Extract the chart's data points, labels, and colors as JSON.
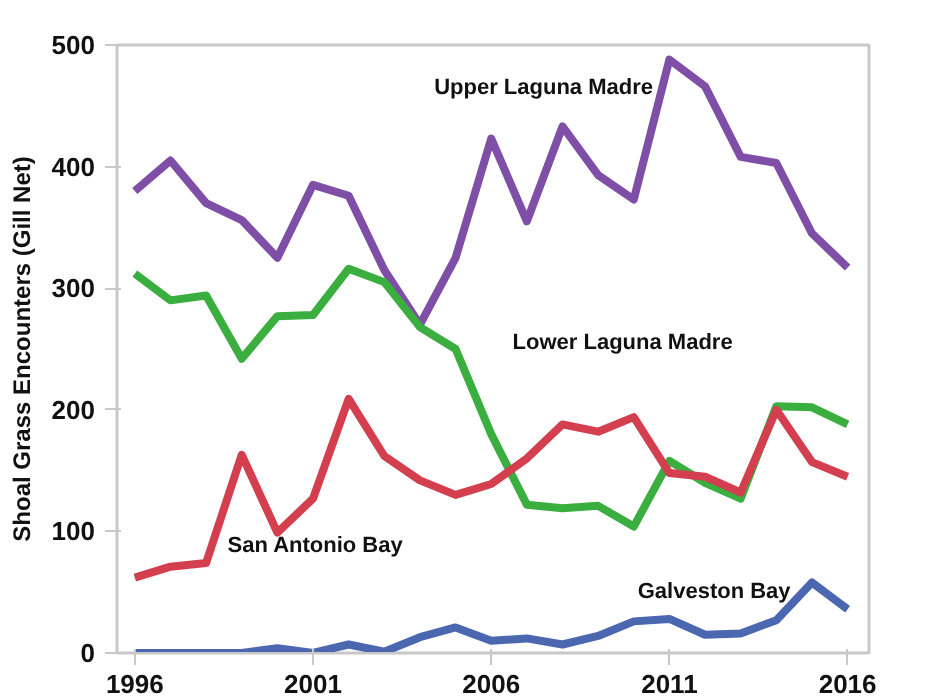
{
  "chart_data": {
    "type": "line",
    "ylabel": "Shoal Grass Encounters (Gill Net)",
    "x": [
      1996,
      1997,
      1998,
      1999,
      2000,
      2001,
      2002,
      2003,
      2004,
      2005,
      2006,
      2007,
      2008,
      2009,
      2010,
      2011,
      2012,
      2013,
      2014,
      2015,
      2016
    ],
    "series": [
      {
        "name": "Upper Laguna Madre",
        "color": "#7f4fa8",
        "values": [
          380,
          405,
          370,
          356,
          325,
          385,
          376,
          315,
          270,
          325,
          423,
          355,
          433,
          393,
          373,
          488,
          466,
          408,
          403,
          345,
          317
        ]
      },
      {
        "name": "Lower Laguna Madre",
        "color": "#3aae3e",
        "values": [
          312,
          290,
          294,
          242,
          277,
          278,
          316,
          305,
          268,
          250,
          180,
          122,
          119,
          121,
          104,
          158,
          140,
          127,
          203,
          202,
          188
        ]
      },
      {
        "name": "San Antonio Bay",
        "color": "#d33f4f",
        "values": [
          62,
          71,
          74,
          163,
          99,
          127,
          209,
          162,
          142,
          130,
          139,
          160,
          188,
          182,
          194,
          148,
          145,
          132,
          200,
          157,
          145
        ]
      },
      {
        "name": "Galveston Bay",
        "color": "#4a67b0",
        "values": [
          0,
          0,
          0,
          0,
          4,
          0,
          7,
          1,
          13,
          21,
          10,
          12,
          7,
          14,
          26,
          28,
          15,
          16,
          27,
          58,
          36
        ]
      }
    ],
    "xlim": [
      1995.5,
      2016.6
    ],
    "ylim": [
      0,
      500
    ],
    "xticks": [
      1996,
      2001,
      2006,
      2011,
      2016
    ],
    "yticks": [
      0,
      100,
      200,
      300,
      400,
      500
    ],
    "grid": false,
    "line_style": "solid",
    "marker": "none"
  }
}
